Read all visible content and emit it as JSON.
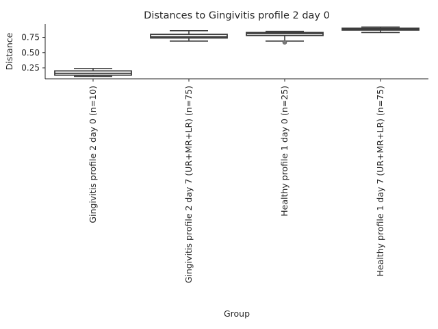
{
  "chart_data": {
    "type": "box",
    "title": "Distances to Gingivitis profile 2 day 0",
    "xlabel": "Group",
    "ylabel": "Distance",
    "yticks": [
      0.25,
      0.5,
      0.75
    ],
    "ytick_labels": [
      "0.25",
      "0.50",
      "0.75"
    ],
    "ylim": [
      0.07,
      0.97
    ],
    "categories": [
      "Gingivitis profile 2 day 0 (n=10)",
      "Gingivitis profile 2 day 7 (UR+MR+LR) (n=75)",
      "Healthy profile 1 day 0 (n=25)",
      "Healthy profile 1 day 7 (UR+MR+LR) (n=75)"
    ],
    "boxes": [
      {
        "whisker_low": 0.11,
        "q1": 0.13,
        "median": 0.16,
        "q3": 0.2,
        "whisker_high": 0.24,
        "outliers": []
      },
      {
        "whisker_low": 0.69,
        "q1": 0.74,
        "median": 0.76,
        "q3": 0.8,
        "whisker_high": 0.86,
        "outliers": []
      },
      {
        "whisker_low": 0.69,
        "q1": 0.78,
        "median": 0.81,
        "q3": 0.83,
        "whisker_high": 0.85,
        "outliers": [
          0.67
        ]
      },
      {
        "whisker_low": 0.83,
        "q1": 0.87,
        "median": 0.885,
        "q3": 0.9,
        "whisker_high": 0.92,
        "outliers": []
      }
    ],
    "colors": {
      "box_stroke": "#3d3d3d",
      "text": "#262626",
      "axis": "#262626"
    }
  }
}
